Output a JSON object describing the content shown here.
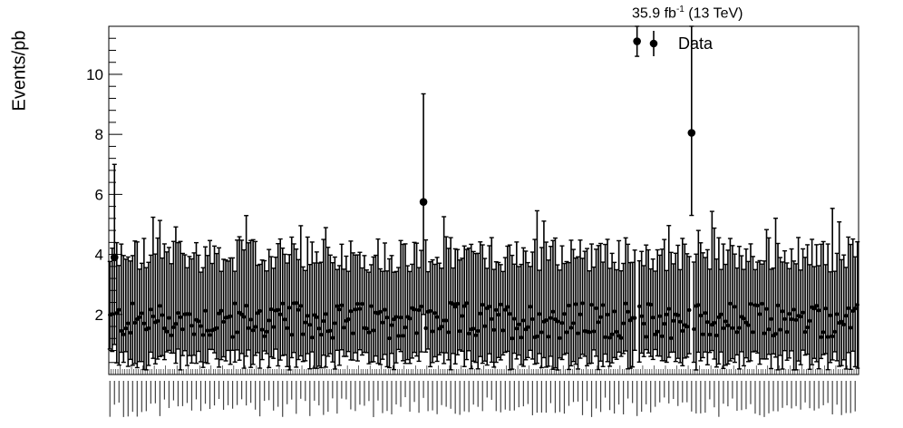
{
  "chart_data": {
    "type": "scatter",
    "style": "data points with vertical error bars",
    "title": "",
    "xlabel": "",
    "ylabel": "Events/pb",
    "ylim": [
      0,
      11.6
    ],
    "yticks": [
      2,
      4,
      6,
      8,
      10
    ],
    "n_bins": 330,
    "x_tick_labels": "dense, unreadable rotated bin labels",
    "legend": [
      {
        "label": "Data",
        "marker": "filled-circle"
      }
    ],
    "legend_position": "top-right",
    "luminosity": {
      "value": "35.9 fb",
      "exponent": "-1",
      "energy": "(13 TeV)"
    },
    "typical_values": {
      "central_min": 1.2,
      "central_max": 2.4,
      "error_low": 0.25,
      "error_high": 4.6
    },
    "highlighted_points": [
      {
        "bin": 2,
        "y": 3.9,
        "err_low": 1.0,
        "err_high": 7.0
      },
      {
        "bin": 138,
        "y": 5.75,
        "err_low": 2.0,
        "err_high": 9.35
      },
      {
        "bin": 232,
        "y": 11.1,
        "err_low": 10.6,
        "err_high": 11.6
      },
      {
        "bin": 256,
        "y": 8.05,
        "err_low": 5.3,
        "err_high": 11.6
      }
    ]
  }
}
